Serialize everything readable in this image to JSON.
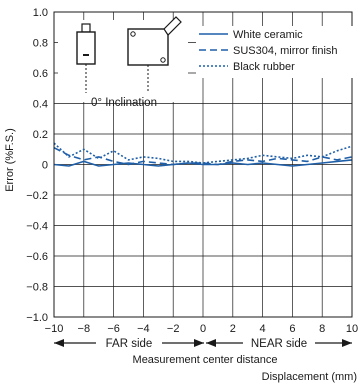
{
  "chart_data": {
    "type": "line",
    "ylabel": "Error (%F.S.)",
    "xlabel_top": "Measurement center distance",
    "xlabel": "Displacement (mm)",
    "xlim": [
      -10,
      10
    ],
    "ylim": [
      -1.0,
      1.0
    ],
    "x_ticks": [
      -10,
      -8,
      -6,
      -4,
      -2,
      0,
      2,
      4,
      6,
      8,
      10
    ],
    "x_tick_labels": [
      "−10",
      "−8",
      "−6",
      "−4",
      "−2",
      "0",
      "2",
      "4",
      "6",
      "8",
      "10"
    ],
    "y_ticks": [
      1.0,
      0.8,
      0.6,
      0.4,
      0.2,
      0,
      -0.2,
      -0.4,
      -0.6,
      -0.8,
      -1.0
    ],
    "y_tick_labels": [
      "1.0",
      "0.8",
      "0.6",
      "0.4",
      "0.2",
      "0",
      "−0.2",
      "−0.4",
      "−0.6",
      "−0.8",
      "−1.0"
    ],
    "grid": true,
    "legend_position": "top-right",
    "far_side_label": "FAR side",
    "near_side_label": "NEAR side",
    "inset_label": "0° Inclination",
    "series": [
      {
        "name": "White ceramic",
        "style": "solid",
        "x": [
          -10,
          -9,
          -8,
          -7,
          -6,
          -5,
          -4,
          -3,
          -2,
          -1,
          0,
          1,
          2,
          3,
          4,
          5,
          6,
          7,
          8,
          9,
          10
        ],
        "y": [
          0.0,
          -0.01,
          0.02,
          -0.01,
          0.0,
          0.01,
          0.0,
          -0.01,
          0.0,
          0.01,
          0.0,
          0.0,
          0.01,
          0.0,
          0.01,
          0.0,
          -0.01,
          0.0,
          0.01,
          0.02,
          0.03
        ]
      },
      {
        "name": "SUS304, mirror finish",
        "style": "dashed",
        "x": [
          -10,
          -9,
          -8,
          -7,
          -6,
          -5,
          -4,
          -3,
          -2,
          -1,
          0,
          1,
          2,
          3,
          4,
          5,
          6,
          7,
          8,
          9,
          10
        ],
        "y": [
          0.11,
          0.06,
          0.03,
          0.05,
          0.02,
          0.0,
          0.02,
          0.01,
          0.0,
          0.01,
          0.01,
          0.0,
          0.02,
          0.03,
          0.02,
          0.04,
          0.03,
          0.02,
          0.05,
          0.03,
          0.05
        ]
      },
      {
        "name": "Black rubber",
        "style": "dotted",
        "x": [
          -10,
          -9,
          -8,
          -7,
          -6,
          -5,
          -4,
          -3,
          -2,
          -1,
          0,
          1,
          2,
          3,
          4,
          5,
          6,
          7,
          8,
          9,
          10
        ],
        "y": [
          0.14,
          0.05,
          0.1,
          0.04,
          0.09,
          0.03,
          0.05,
          0.04,
          0.02,
          0.02,
          0.01,
          0.02,
          0.03,
          0.04,
          0.06,
          0.05,
          0.04,
          0.06,
          0.05,
          0.09,
          0.12
        ]
      }
    ]
  },
  "colors": {
    "series": "#1f5fa8",
    "axis": "#1a1a1a",
    "grid": "#1a1a1a"
  }
}
